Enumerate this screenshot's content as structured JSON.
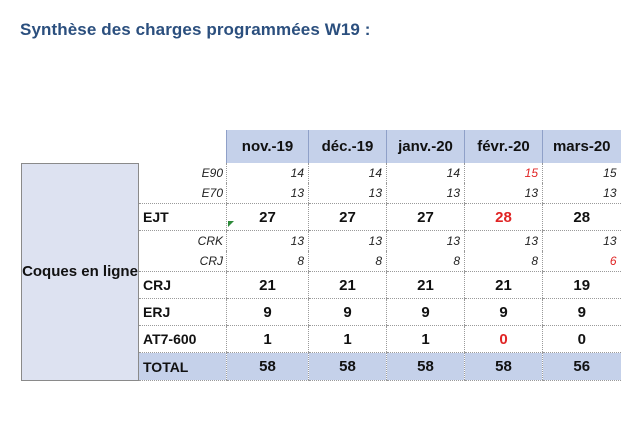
{
  "title": "Synthèse des charges programmées W19 :",
  "table": {
    "category": "Coques en ligne",
    "months": [
      "nov.-19",
      "déc.-19",
      "janv.-20",
      "févr.-20",
      "mars-20"
    ],
    "ejt_sub": [
      {
        "label": "E90",
        "values": [
          "14",
          "14",
          "14",
          "15",
          "15"
        ]
      },
      {
        "label": "E70",
        "values": [
          "13",
          "13",
          "13",
          "13",
          "13"
        ]
      }
    ],
    "ejt": {
      "label": "EJT",
      "values": [
        "27",
        "27",
        "27",
        "28",
        "28"
      ]
    },
    "crj_sub": [
      {
        "label": "CRK",
        "values": [
          "13",
          "13",
          "13",
          "13",
          "13"
        ]
      },
      {
        "label": "CRJ",
        "values": [
          "8",
          "8",
          "8",
          "8",
          "6"
        ]
      }
    ],
    "crj": {
      "label": "CRJ",
      "values": [
        "21",
        "21",
        "21",
        "21",
        "19"
      ]
    },
    "erj": {
      "label": "ERJ",
      "values": [
        "9",
        "9",
        "9",
        "9",
        "9"
      ]
    },
    "at7": {
      "label": "AT7-600",
      "values": [
        "1",
        "1",
        "1",
        "0",
        "0"
      ]
    },
    "total": {
      "label": "TOTAL",
      "values": [
        "58",
        "58",
        "58",
        "58",
        "56"
      ]
    }
  },
  "colors": {
    "title": "#2b4f7e",
    "header_bg": "#c5d1ea",
    "category_bg": "#dde2f1",
    "highlight_red": "#e02424"
  }
}
